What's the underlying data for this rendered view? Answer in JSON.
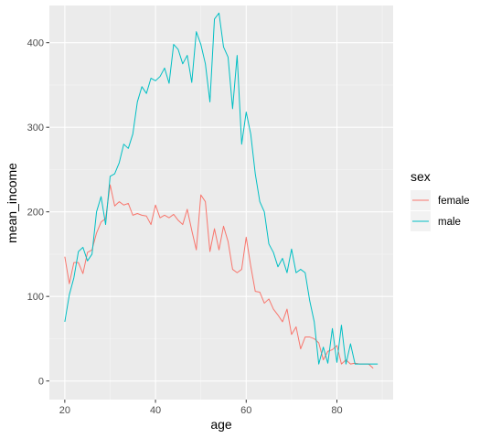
{
  "chart_data": {
    "type": "line",
    "title": "",
    "xlabel": "age",
    "ylabel": "mean_income",
    "xlim": [
      16.6,
      92.4
    ],
    "ylim": [
      -22,
      444
    ],
    "x_ticks": [
      20,
      40,
      60,
      80
    ],
    "y_ticks": [
      0,
      100,
      200,
      300,
      400
    ],
    "grid": true,
    "legend": {
      "title": "sex",
      "position": "right"
    },
    "series": [
      {
        "name": "female",
        "color": "#F8766D",
        "x": [
          20,
          21,
          22,
          23,
          24,
          25,
          26,
          27,
          28,
          29,
          30,
          31,
          32,
          33,
          34,
          35,
          36,
          37,
          38,
          39,
          40,
          41,
          42,
          43,
          44,
          45,
          46,
          47,
          48,
          49,
          50,
          51,
          52,
          53,
          54,
          55,
          56,
          57,
          58,
          59,
          60,
          61,
          62,
          63,
          64,
          65,
          66,
          67,
          68,
          69,
          70,
          71,
          72,
          73,
          74,
          75,
          76,
          77,
          78,
          79,
          80,
          81,
          82,
          83,
          84,
          85,
          86,
          87,
          88
        ],
        "y": [
          147,
          115,
          140,
          140,
          127,
          152,
          155,
          175,
          188,
          192,
          232,
          207,
          212,
          208,
          210,
          196,
          198,
          196,
          195,
          185,
          208,
          193,
          196,
          193,
          197,
          190,
          185,
          203,
          178,
          155,
          220,
          212,
          153,
          180,
          155,
          183,
          165,
          132,
          128,
          132,
          170,
          136,
          106,
          105,
          92,
          97,
          85,
          78,
          70,
          85,
          55,
          64,
          38,
          52,
          52,
          50,
          45,
          25,
          35,
          37,
          42,
          20,
          25,
          20,
          21,
          20,
          20,
          20,
          15
        ]
      },
      {
        "name": "male",
        "color": "#00BFC4",
        "x": [
          20,
          21,
          22,
          23,
          24,
          25,
          26,
          27,
          28,
          29,
          30,
          31,
          32,
          33,
          34,
          35,
          36,
          37,
          38,
          39,
          40,
          41,
          42,
          43,
          44,
          45,
          46,
          47,
          48,
          49,
          50,
          51,
          52,
          53,
          54,
          55,
          56,
          57,
          58,
          59,
          60,
          61,
          62,
          63,
          64,
          65,
          66,
          67,
          68,
          69,
          70,
          71,
          72,
          73,
          74,
          75,
          76,
          77,
          78,
          79,
          80,
          81,
          82,
          83,
          84,
          85,
          86,
          87,
          88,
          89
        ],
        "y": [
          70,
          102,
          122,
          153,
          158,
          142,
          150,
          200,
          218,
          185,
          242,
          245,
          258,
          280,
          275,
          292,
          330,
          348,
          340,
          358,
          355,
          360,
          370,
          352,
          398,
          392,
          375,
          385,
          353,
          413,
          398,
          375,
          330,
          428,
          435,
          395,
          383,
          322,
          385,
          280,
          318,
          292,
          245,
          212,
          200,
          162,
          152,
          135,
          145,
          128,
          156,
          128,
          132,
          128,
          95,
          70,
          20,
          40,
          21,
          62,
          22,
          66,
          20,
          44,
          20,
          20,
          20,
          20,
          20,
          20
        ]
      }
    ]
  }
}
